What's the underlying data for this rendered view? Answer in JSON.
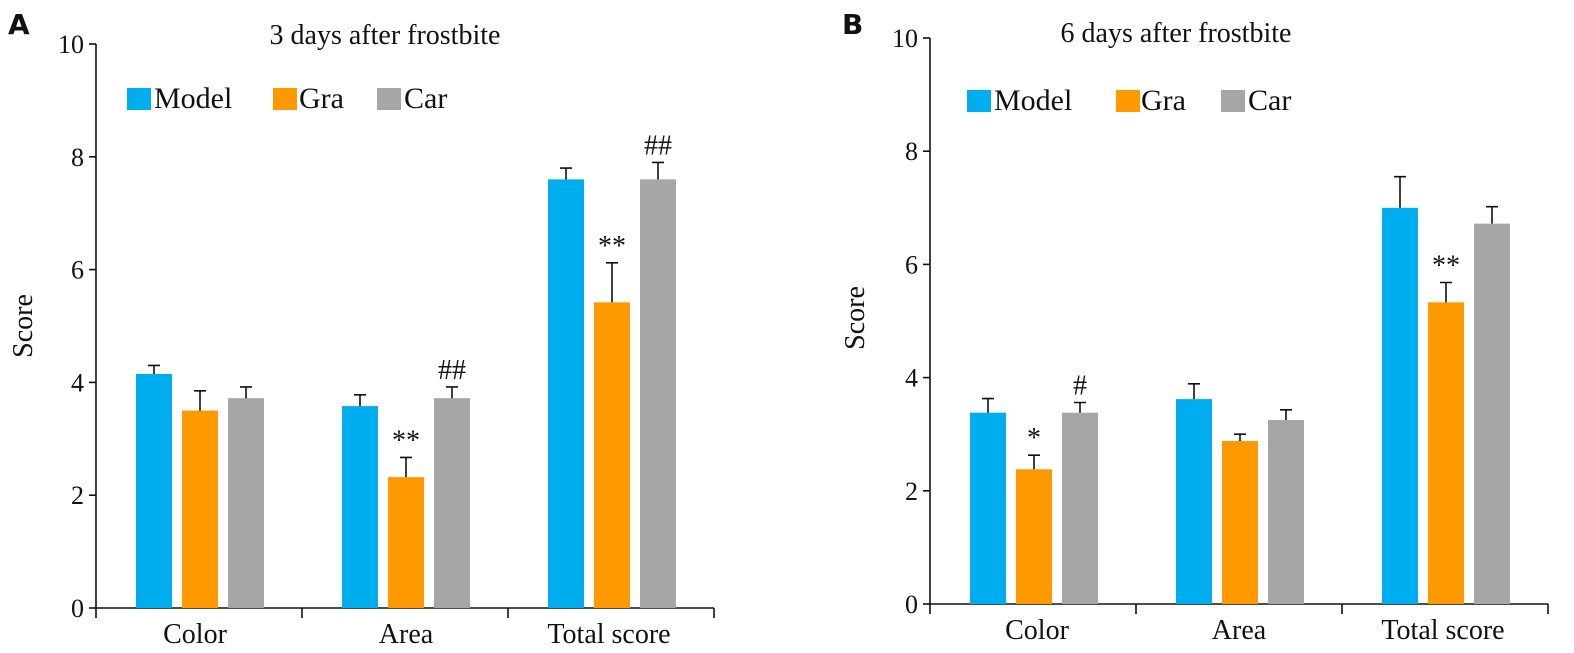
{
  "chart_data": [
    {
      "type": "bar",
      "panel": "A",
      "title": "3 days after frostbite",
      "ylabel": "Score",
      "xlabel": "",
      "ylim": [
        0,
        10
      ],
      "yticks": [
        0,
        2,
        4,
        6,
        8,
        10
      ],
      "categories": [
        "Color",
        "Area",
        "Total score"
      ],
      "legend_position": "top-left",
      "series": [
        {
          "name": "Model",
          "color": "#00AEEF",
          "values": [
            4.15,
            3.58,
            7.6
          ],
          "errors": [
            0.15,
            0.2,
            0.2
          ]
        },
        {
          "name": "Gra",
          "color": "#FF9900",
          "values": [
            3.5,
            2.32,
            5.42
          ],
          "errors": [
            0.35,
            0.35,
            0.7
          ]
        },
        {
          "name": "Car",
          "color": "#A6A6A6",
          "values": [
            3.72,
            3.72,
            7.6
          ],
          "errors": [
            0.2,
            0.2,
            0.3
          ]
        }
      ],
      "annotations": [
        {
          "category": 1,
          "series": 1,
          "text": "**"
        },
        {
          "category": 1,
          "series": 2,
          "text": "##"
        },
        {
          "category": 2,
          "series": 1,
          "text": "**"
        },
        {
          "category": 2,
          "series": 2,
          "text": "##"
        }
      ]
    },
    {
      "type": "bar",
      "panel": "B",
      "title": "6 days after frostbite",
      "ylabel": "Score",
      "xlabel": "",
      "ylim": [
        0,
        10
      ],
      "yticks": [
        0,
        2,
        4,
        6,
        8,
        10
      ],
      "categories": [
        "Color",
        "Area",
        "Total score"
      ],
      "legend_position": "top-left",
      "series": [
        {
          "name": "Model",
          "color": "#00AEEF",
          "values": [
            3.38,
            3.62,
            7.0
          ],
          "errors": [
            0.25,
            0.27,
            0.55
          ]
        },
        {
          "name": "Gra",
          "color": "#FF9900",
          "values": [
            2.38,
            2.88,
            5.33
          ],
          "errors": [
            0.25,
            0.12,
            0.35
          ]
        },
        {
          "name": "Car",
          "color": "#A6A6A6",
          "values": [
            3.38,
            3.25,
            6.72
          ],
          "errors": [
            0.18,
            0.18,
            0.3
          ]
        }
      ],
      "annotations": [
        {
          "category": 0,
          "series": 1,
          "text": "*"
        },
        {
          "category": 0,
          "series": 2,
          "text": "#"
        },
        {
          "category": 2,
          "series": 1,
          "text": "**"
        }
      ]
    }
  ]
}
